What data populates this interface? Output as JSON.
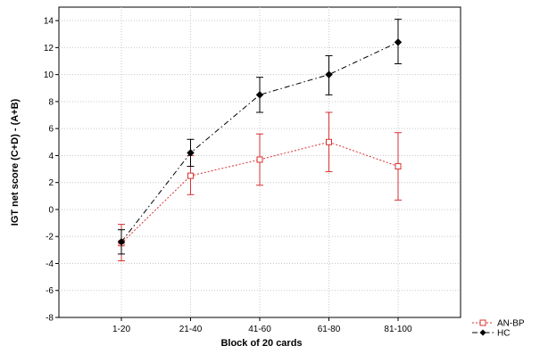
{
  "chart_data": {
    "type": "line",
    "title": "",
    "xlabel": "Block of 20 cards",
    "ylabel": "IGT net score (C+D) - (A+B)",
    "categories": [
      "1-20",
      "21-40",
      "41-60",
      "61-80",
      "81-100"
    ],
    "ylim": [
      -8,
      15
    ],
    "yticks": [
      -8,
      -6,
      -4,
      -2,
      0,
      2,
      4,
      6,
      8,
      10,
      12,
      14
    ],
    "grid": true,
    "legend_position": "bottom-right-outside",
    "series": [
      {
        "name": "AN-BP",
        "color": "#d93030",
        "marker": "open-square",
        "line_style": "dotted",
        "values": [
          -2.5,
          2.5,
          3.7,
          5.0,
          3.2
        ],
        "error_upper": [
          -1.1,
          4.0,
          5.6,
          7.2,
          5.7
        ],
        "error_lower": [
          -3.8,
          1.1,
          1.8,
          2.8,
          0.7
        ]
      },
      {
        "name": "HC",
        "color": "#000000",
        "marker": "filled-diamond",
        "line_style": "dash-dot",
        "values": [
          -2.4,
          4.2,
          8.5,
          10.0,
          12.4
        ],
        "error_upper": [
          -1.5,
          5.2,
          9.8,
          11.4,
          14.1
        ],
        "error_lower": [
          -3.3,
          3.2,
          7.2,
          8.5,
          10.8
        ]
      }
    ]
  }
}
